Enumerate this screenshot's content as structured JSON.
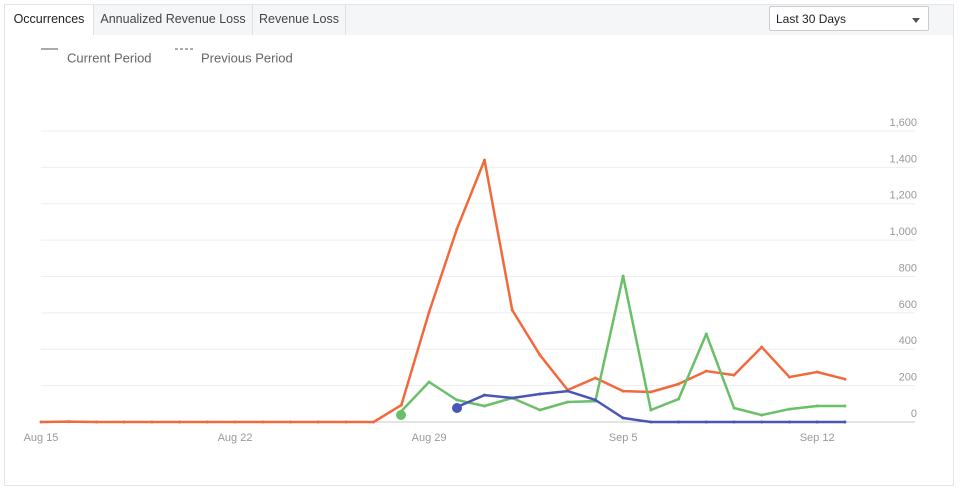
{
  "tabs": [
    "Occurrences",
    "Annualized Revenue Loss",
    "Revenue Loss"
  ],
  "dropdown": "Last 30 Days",
  "legend": [
    "Current Period",
    "Previous Period"
  ],
  "chart_data": {
    "type": "line",
    "categories": [
      "Aug 15",
      null,
      null,
      null,
      null,
      null,
      null,
      "Aug 22",
      null,
      null,
      null,
      null,
      null,
      null,
      "Aug 29",
      null,
      null,
      null,
      null,
      null,
      null,
      "Sep 5",
      null,
      null,
      null,
      null,
      null,
      null,
      "Sep 12",
      null
    ],
    "series": [
      {
        "color": "#f26a3c",
        "values": [
          0,
          2,
          0,
          0,
          0,
          0,
          0,
          0,
          0,
          0,
          0,
          0,
          0,
          93,
          604,
          1060,
          1440,
          615,
          368,
          176,
          242,
          170,
          165,
          209,
          280,
          258,
          412,
          247,
          275,
          236
        ]
      },
      {
        "color": "#6abf69",
        "values": [
          null,
          null,
          null,
          null,
          null,
          null,
          null,
          null,
          null,
          null,
          null,
          null,
          null,
          60,
          220,
          121,
          88,
          132,
          66,
          110,
          115,
          802,
          66,
          126,
          484,
          77,
          38,
          71,
          88,
          88
        ]
      },
      {
        "color": "#4a55b5",
        "values": [
          null,
          null,
          null,
          null,
          null,
          null,
          null,
          null,
          null,
          null,
          null,
          null,
          null,
          null,
          null,
          82,
          148,
          132,
          154,
          170,
          121,
          22,
          0,
          0,
          0,
          0,
          0,
          0,
          0,
          0
        ]
      }
    ],
    "ylim": [
      0,
      1600
    ],
    "yticks": [
      0,
      200,
      400,
      600,
      800,
      {
        "value": 1000,
        "label": "1,000"
      },
      {
        "value": 1200,
        "label": "1,200"
      },
      {
        "value": 1400,
        "label": "1,400"
      },
      {
        "value": 1600,
        "label": "1,600"
      }
    ],
    "grid": true
  }
}
